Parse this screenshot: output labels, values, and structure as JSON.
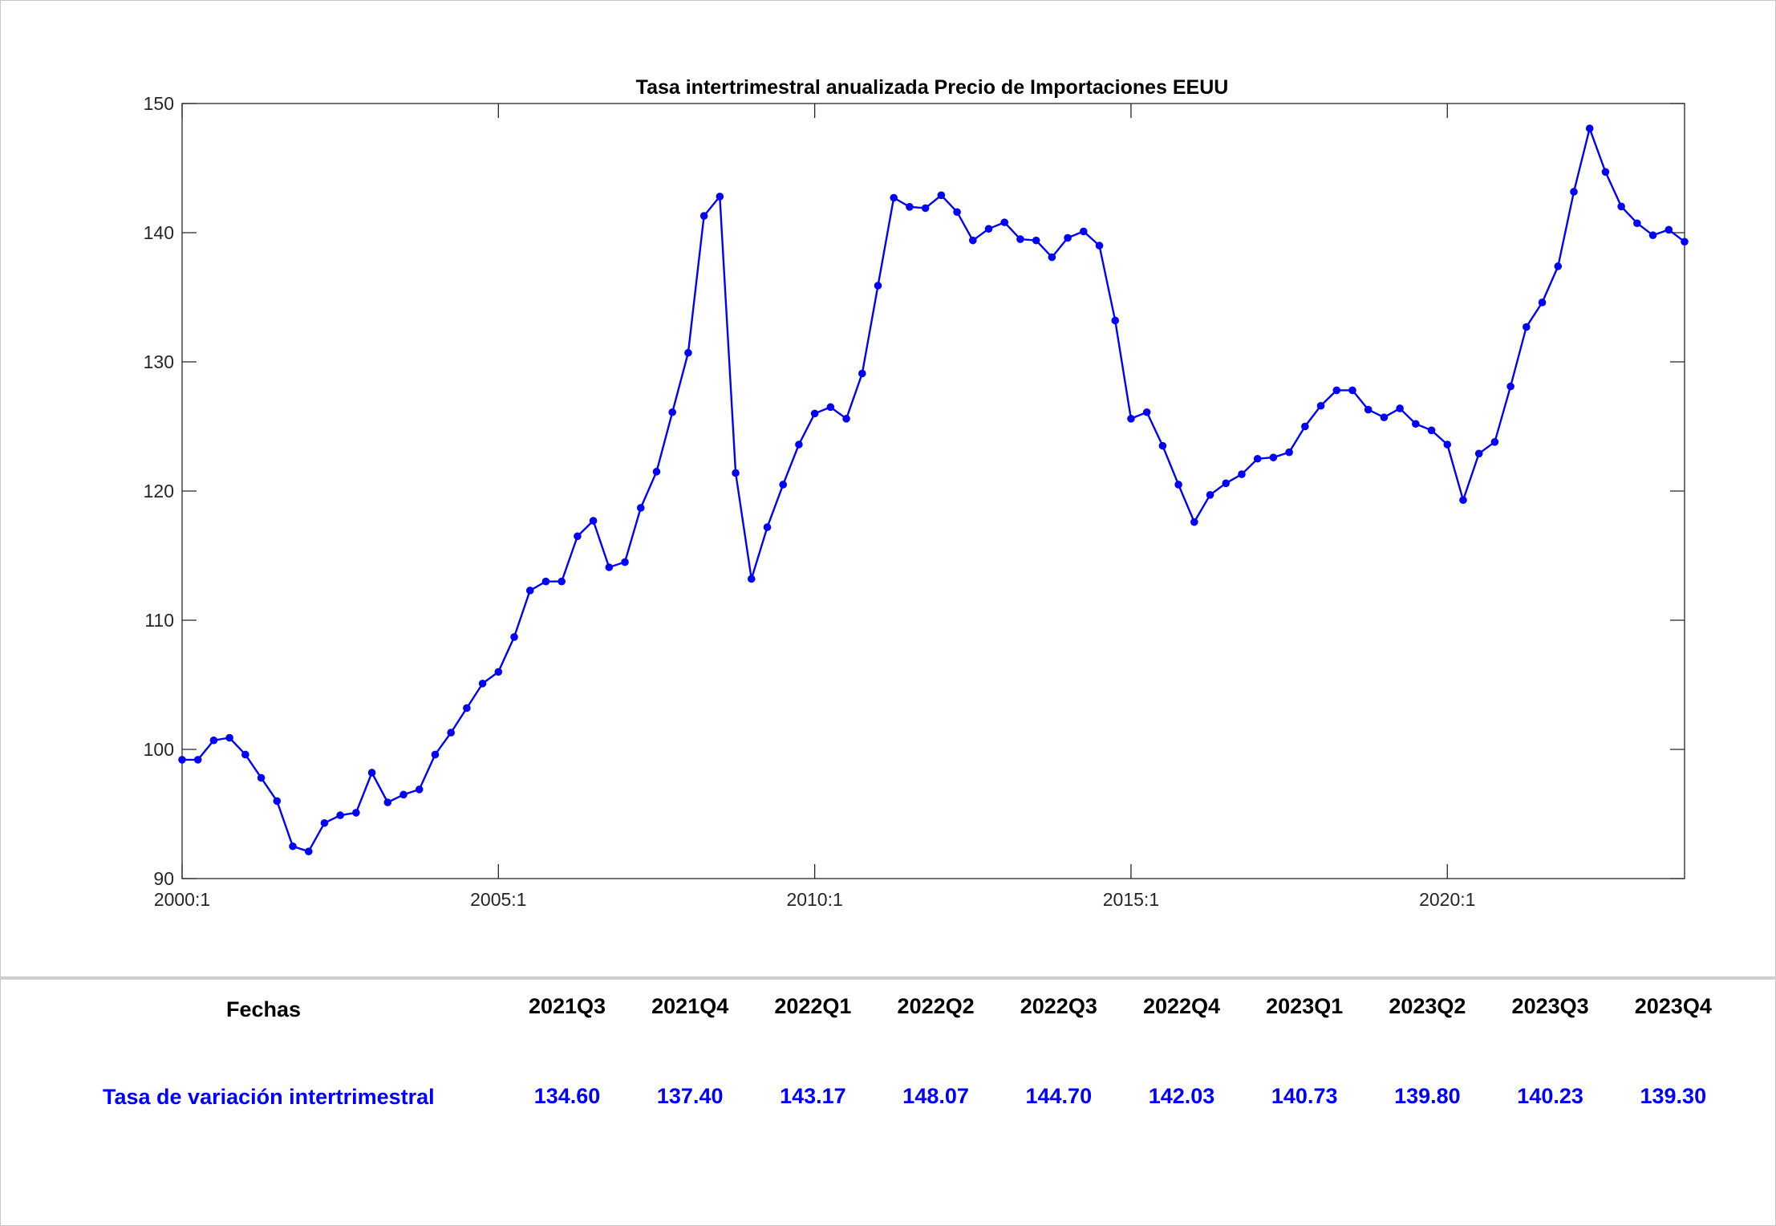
{
  "chart_data": {
    "type": "line",
    "title": "Tasa intertrimestral anualizada Precio de Importaciones EEUU",
    "xlabel": "",
    "ylabel": "",
    "ylim": [
      90,
      150
    ],
    "yticks": [
      "90",
      "100",
      "110",
      "120",
      "130",
      "140",
      "150"
    ],
    "xticks": [
      "2000:1",
      "2005:1",
      "2010:1",
      "2015:1",
      "2020:1"
    ],
    "x_start": "2000:1",
    "frequency": "quarterly",
    "series_color": "#0000ff",
    "grid": false,
    "series": [
      {
        "values": [
          99.2,
          99.2,
          100.7,
          100.9,
          99.6,
          97.8,
          96.0,
          92.5,
          92.1,
          94.3,
          94.9,
          95.1,
          98.2,
          95.9,
          96.5,
          96.9,
          99.6,
          101.3,
          103.2,
          105.1,
          106.0,
          108.7,
          112.3,
          113.0,
          113.0,
          116.5,
          117.7,
          114.1,
          114.5,
          118.7,
          121.5,
          126.1,
          130.7,
          141.3,
          142.8,
          121.4,
          113.2,
          117.2,
          120.5,
          123.6,
          126.0,
          126.5,
          125.6,
          129.1,
          135.9,
          142.7,
          142.0,
          141.9,
          142.9,
          141.6,
          139.4,
          140.3,
          140.8,
          139.5,
          139.4,
          138.1,
          139.6,
          140.1,
          139.0,
          133.2,
          125.6,
          126.1,
          123.5,
          120.5,
          117.6,
          119.7,
          120.6,
          121.3,
          122.5,
          122.6,
          123.0,
          125.0,
          126.6,
          127.8,
          127.8,
          126.3,
          125.7,
          126.4,
          125.2,
          124.7,
          123.6,
          119.3,
          122.9,
          123.8,
          128.1,
          132.7,
          134.6,
          137.4,
          143.17,
          148.07,
          144.7,
          142.03,
          140.73,
          139.8,
          140.23,
          139.3
        ]
      }
    ]
  },
  "table": {
    "header_label": "Fechas",
    "row_label": "Tasa de variación intertrimestral",
    "quarters": [
      "2021Q3",
      "2021Q4",
      "2022Q1",
      "2022Q2",
      "2022Q3",
      "2022Q4",
      "2023Q1",
      "2023Q2",
      "2023Q3",
      "2023Q4"
    ],
    "values": [
      "134.60",
      "137.40",
      "143.17",
      "148.07",
      "144.70",
      "142.03",
      "140.73",
      "139.80",
      "140.23",
      "139.30"
    ]
  }
}
